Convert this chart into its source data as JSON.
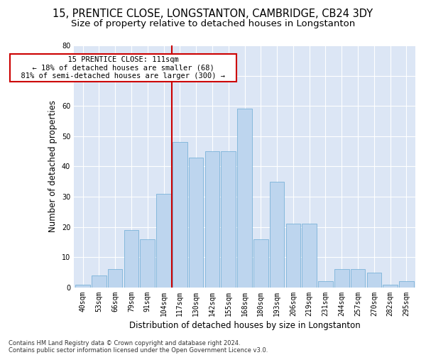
{
  "title1": "15, PRENTICE CLOSE, LONGSTANTON, CAMBRIDGE, CB24 3DY",
  "title2": "Size of property relative to detached houses in Longstanton",
  "xlabel": "Distribution of detached houses by size in Longstanton",
  "ylabel": "Number of detached properties",
  "footer1": "Contains HM Land Registry data © Crown copyright and database right 2024.",
  "footer2": "Contains public sector information licensed under the Open Government Licence v3.0.",
  "annotation_line1": "15 PRENTICE CLOSE: 111sqm",
  "annotation_line2": "← 18% of detached houses are smaller (68)",
  "annotation_line3": "81% of semi-detached houses are larger (300) →",
  "bar_labels": [
    "40sqm",
    "53sqm",
    "66sqm",
    "79sqm",
    "91sqm",
    "104sqm",
    "117sqm",
    "130sqm",
    "142sqm",
    "155sqm",
    "168sqm",
    "180sqm",
    "193sqm",
    "206sqm",
    "219sqm",
    "231sqm",
    "244sqm",
    "257sqm",
    "270sqm",
    "282sqm",
    "295sqm"
  ],
  "bar_values": [
    1,
    4,
    6,
    19,
    16,
    31,
    48,
    43,
    45,
    45,
    59,
    16,
    35,
    21,
    21,
    2,
    6,
    6,
    5,
    1,
    2
  ],
  "bar_color": "#bdd5ee",
  "bar_edge_color": "#6aaad4",
  "vline_color": "#cc0000",
  "ylim": [
    0,
    80
  ],
  "yticks": [
    0,
    10,
    20,
    30,
    40,
    50,
    60,
    70,
    80
  ],
  "bg_color": "#dce6f5",
  "annotation_box_facecolor": "#ffffff",
  "annotation_box_edgecolor": "#cc0000",
  "title_fontsize": 10.5,
  "subtitle_fontsize": 9.5,
  "axis_label_fontsize": 8.5,
  "tick_fontsize": 7,
  "annotation_fontsize": 7.5,
  "footer_fontsize": 6
}
